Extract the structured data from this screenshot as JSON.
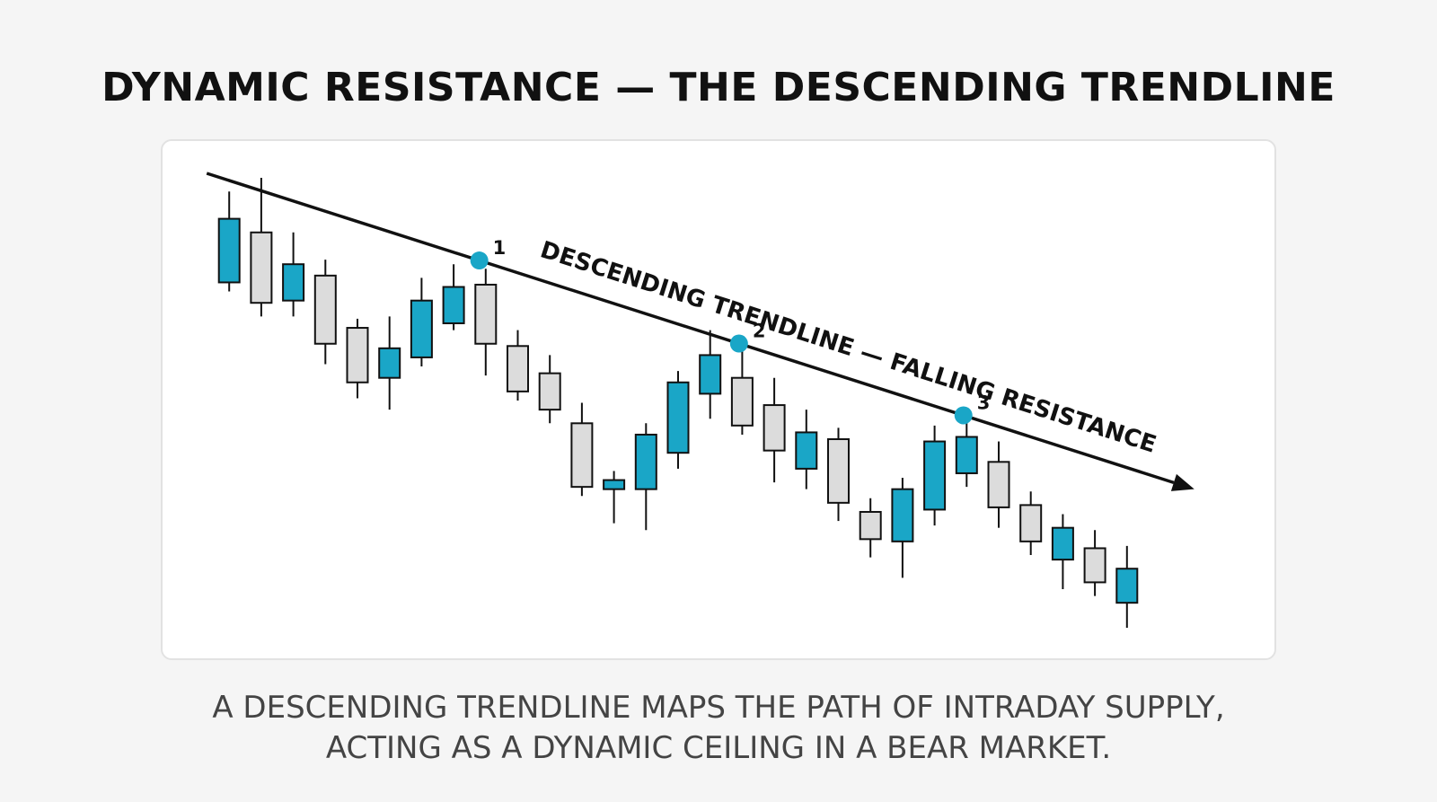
{
  "title": "DYNAMIC RESISTANCE — THE DESCENDING TRENDLINE",
  "caption": {
    "line1": "A DESCENDING TRENDLINE MAPS THE PATH OF INTRADAY SUPPLY,",
    "line2": "ACTING AS A DYNAMIC CEILING IN A BEAR MARKET."
  },
  "colors": {
    "bullish": "#1aa6c7",
    "bearish": "#dcdcdc",
    "outline": "#111111",
    "touch_point": "#1aa6c7"
  },
  "chart_data": {
    "type": "candlestick",
    "axes_visible": false,
    "grid": false,
    "candles": [
      {
        "i": 1,
        "dir": "up",
        "open": 52,
        "close": 80,
        "high": 92,
        "low": 48
      },
      {
        "i": 2,
        "dir": "down",
        "open": 74,
        "close": 43,
        "high": 98,
        "low": 37
      },
      {
        "i": 3,
        "dir": "up",
        "open": 44,
        "close": 60,
        "high": 74,
        "low": 37
      },
      {
        "i": 4,
        "dir": "down",
        "open": 55,
        "close": 25,
        "high": 62,
        "low": 16
      },
      {
        "i": 5,
        "dir": "down",
        "open": 32,
        "close": 8,
        "high": 36,
        "low": 1
      },
      {
        "i": 6,
        "dir": "up",
        "open": 10,
        "close": 23,
        "high": 37,
        "low": -4
      },
      {
        "i": 7,
        "dir": "up",
        "open": 19,
        "close": 44,
        "high": 54,
        "low": 15
      },
      {
        "i": 8,
        "dir": "up",
        "open": 34,
        "close": 50,
        "high": 60,
        "low": 31
      },
      {
        "i": 9,
        "dir": "down",
        "open": 51,
        "close": 25,
        "high": 58,
        "low": 11
      },
      {
        "i": 10,
        "dir": "down",
        "open": 24,
        "close": 4,
        "high": 31,
        "low": 0
      },
      {
        "i": 11,
        "dir": "down",
        "open": 12,
        "close": -4,
        "high": 20,
        "low": -10
      },
      {
        "i": 12,
        "dir": "down",
        "open": -10,
        "close": -38,
        "high": -1,
        "low": -42
      },
      {
        "i": 13,
        "dir": "up",
        "open": -39,
        "close": -35,
        "high": -31,
        "low": -54
      },
      {
        "i": 14,
        "dir": "up",
        "open": -39,
        "close": -15,
        "high": -10,
        "low": -57
      },
      {
        "i": 15,
        "dir": "up",
        "open": -23,
        "close": 8,
        "high": 13,
        "low": -30
      },
      {
        "i": 16,
        "dir": "up",
        "open": 3,
        "close": 20,
        "high": 31,
        "low": -8
      },
      {
        "i": 17,
        "dir": "down",
        "open": 10,
        "close": -11,
        "high": 23,
        "low": -15
      },
      {
        "i": 18,
        "dir": "down",
        "open": -2,
        "close": -22,
        "high": 10,
        "low": -36
      },
      {
        "i": 19,
        "dir": "up",
        "open": -30,
        "close": -14,
        "high": -4,
        "low": -39
      },
      {
        "i": 20,
        "dir": "down",
        "open": -17,
        "close": -45,
        "high": -12,
        "low": -53
      },
      {
        "i": 21,
        "dir": "down",
        "open": -49,
        "close": -61,
        "high": -43,
        "low": -69
      },
      {
        "i": 22,
        "dir": "up",
        "open": -62,
        "close": -39,
        "high": -34,
        "low": -78
      },
      {
        "i": 23,
        "dir": "up",
        "open": -48,
        "close": -18,
        "high": -11,
        "low": -55
      },
      {
        "i": 24,
        "dir": "up",
        "open": -32,
        "close": -16,
        "high": -7,
        "low": -38
      },
      {
        "i": 25,
        "dir": "down",
        "open": -27,
        "close": -47,
        "high": -18,
        "low": -56
      },
      {
        "i": 26,
        "dir": "down",
        "open": -46,
        "close": -62,
        "high": -40,
        "low": -68
      },
      {
        "i": 27,
        "dir": "up",
        "open": -70,
        "close": -56,
        "high": -50,
        "low": -83
      },
      {
        "i": 28,
        "dir": "down",
        "open": -65,
        "close": -80,
        "high": -57,
        "low": -86
      },
      {
        "i": 29,
        "dir": "up",
        "open": -89,
        "close": -74,
        "high": -64,
        "low": -100
      }
    ],
    "trendline": {
      "start": {
        "i": 0.3,
        "price": 100
      },
      "end": {
        "i": 31.1,
        "price": -39
      },
      "label": "DESCENDING TRENDLINE — FALLING RESISTANCE",
      "arrow": true
    },
    "touch_points": [
      {
        "label": "1",
        "i": 8.8
      },
      {
        "label": "2",
        "i": 16.9
      },
      {
        "label": "3",
        "i": 23.9
      }
    ]
  }
}
